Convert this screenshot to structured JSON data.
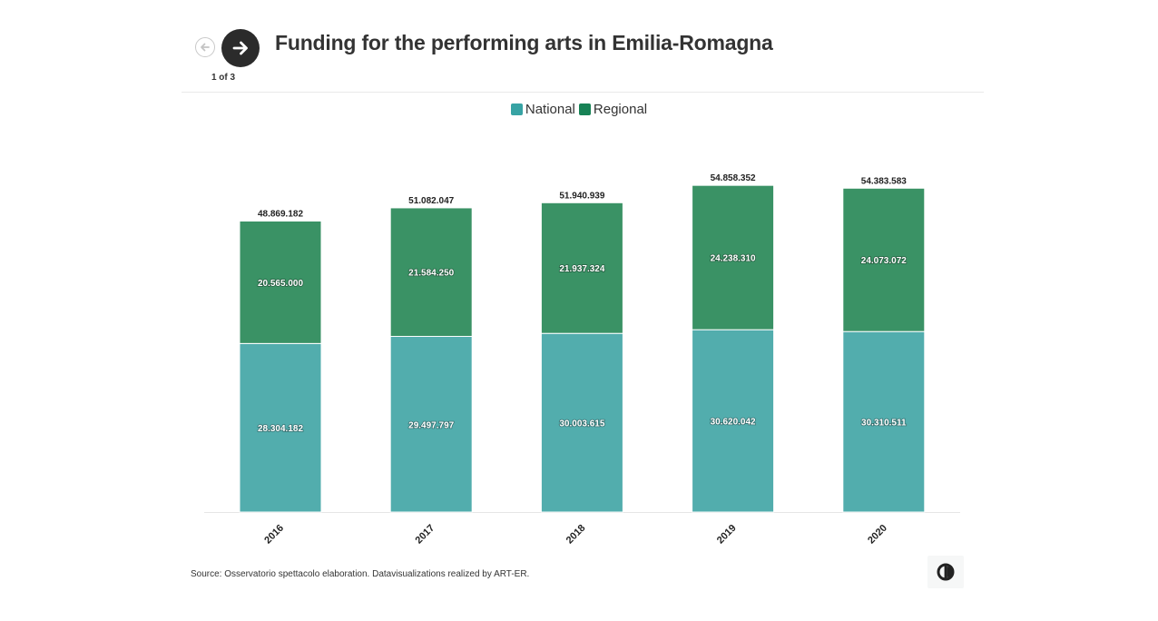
{
  "header": {
    "title": "Funding for the performing arts in Emilia-Romagna",
    "page_indicator": "1 of 3",
    "prev_icon": "arrow-left-icon",
    "next_icon": "arrow-right-icon"
  },
  "footer": {
    "source": "Source: Osservatorio spettacolo elaboration. Datavisualizations realized by ART-ER.",
    "logo_icon": "art-er-logo-icon"
  },
  "colors": {
    "national": "#52adad",
    "regional": "#3a9265",
    "regional_swatch": "#178255",
    "national_swatch": "#37a3a4"
  },
  "chart_data": {
    "type": "bar",
    "stacked": true,
    "title": "Funding for the performing arts in Emilia-Romagna",
    "categories": [
      "2016",
      "2017",
      "2018",
      "2019",
      "2020"
    ],
    "series": [
      {
        "name": "National",
        "values": [
          28304182,
          29497797,
          30003615,
          30620042,
          30310511
        ],
        "labels": [
          "28.304.182",
          "29.497.797",
          "30.003.615",
          "30.620.042",
          "30.310.511"
        ]
      },
      {
        "name": "Regional",
        "values": [
          20565000,
          21584250,
          21937324,
          24238310,
          24073072
        ],
        "labels": [
          "20.565.000",
          "21.584.250",
          "21.937.324",
          "24.238.310",
          "24.073.072"
        ]
      }
    ],
    "totals": [
      48869182,
      51082047,
      51940939,
      54858352,
      54383583
    ],
    "total_labels": [
      "48.869.182",
      "51.082.047",
      "51.940.939",
      "54.858.352",
      "54.383.583"
    ],
    "legend": [
      "National",
      "Regional"
    ],
    "legend_position": "top-center",
    "xlabel": "",
    "ylabel": "",
    "ylim": [
      0,
      59000000
    ],
    "grid": false
  }
}
